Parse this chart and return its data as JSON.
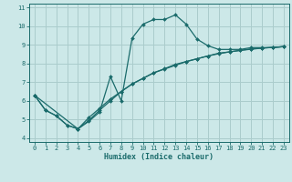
{
  "title": "",
  "xlabel": "Humidex (Indice chaleur)",
  "bg_color": "#cce8e8",
  "grid_color": "#aacccc",
  "line_color": "#1a6b6b",
  "xlim": [
    -0.5,
    23.5
  ],
  "ylim": [
    3.8,
    11.2
  ],
  "yticks": [
    4,
    5,
    6,
    7,
    8,
    9,
    10,
    11
  ],
  "xticks": [
    0,
    1,
    2,
    3,
    4,
    5,
    6,
    7,
    8,
    9,
    10,
    11,
    12,
    13,
    14,
    15,
    16,
    17,
    18,
    19,
    20,
    21,
    22,
    23
  ],
  "line1_x": [
    0,
    1,
    2,
    3,
    4,
    5,
    6,
    7,
    8,
    9,
    10,
    11,
    12,
    13,
    14,
    15,
    16,
    17,
    18,
    19,
    20,
    21,
    22,
    23
  ],
  "line1_y": [
    6.3,
    5.5,
    5.2,
    4.7,
    4.5,
    4.9,
    5.4,
    7.3,
    6.0,
    9.35,
    10.1,
    10.35,
    10.35,
    10.6,
    10.1,
    9.3,
    8.95,
    8.75,
    8.75,
    8.75,
    8.85,
    8.85,
    8.85,
    8.9
  ],
  "line2_x": [
    0,
    1,
    2,
    3,
    4,
    5,
    6,
    7,
    8,
    9,
    10,
    11,
    12,
    13,
    14,
    15,
    16,
    17,
    18,
    19,
    20,
    21,
    22,
    23
  ],
  "line2_y": [
    6.3,
    5.5,
    5.2,
    4.7,
    4.5,
    5.1,
    5.6,
    6.1,
    6.5,
    6.9,
    7.2,
    7.5,
    7.7,
    7.9,
    8.1,
    8.25,
    8.4,
    8.55,
    8.62,
    8.7,
    8.78,
    8.82,
    8.86,
    8.9
  ],
  "line3_x": [
    0,
    4,
    5,
    6,
    7,
    8,
    9,
    10,
    11,
    12,
    13,
    14,
    15,
    16,
    17,
    18,
    19,
    20,
    21,
    22,
    23
  ],
  "line3_y": [
    6.3,
    4.5,
    4.95,
    5.5,
    6.0,
    6.5,
    6.9,
    7.2,
    7.5,
    7.72,
    7.95,
    8.1,
    8.25,
    8.4,
    8.52,
    8.62,
    8.7,
    8.76,
    8.82,
    8.86,
    8.9
  ]
}
